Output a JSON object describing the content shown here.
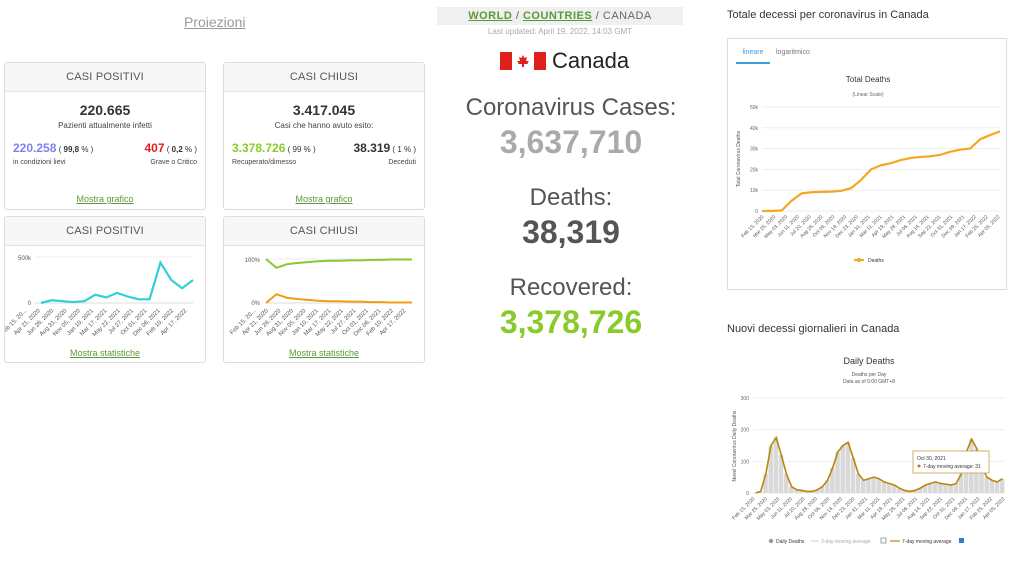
{
  "proiezioni": "Proiezioni",
  "active": {
    "title": "CASI POSITIVI",
    "count": "220.665",
    "subtitle": "Pazienti attualmente infetti",
    "mild_value": "220.258",
    "mild_pct": "99,8",
    "mild_label": "in condizioni lievi",
    "critical_value": "407",
    "critical_pct": "0,2",
    "critical_label": "Grave o Critico",
    "link": "Mostra grafico"
  },
  "closed": {
    "title": "CASI CHIUSI",
    "count": "3.417.045",
    "subtitle": "Casi che hanno avuto esito:",
    "recovered_value": "3.378.726",
    "recovered_pct": "99 %",
    "recovered_label": "Recuperato/dimesso",
    "deaths_value": "38.319",
    "deaths_pct": "1 %",
    "deaths_label": "Deceduti",
    "link": "Mostra grafico"
  },
  "active_chart": {
    "title": "CASI POSITIVI",
    "y_ticks": [
      "500k",
      "0"
    ],
    "x_ticks": [
      "Feb 15, 20...",
      "Apr 21, 2020",
      "Jun 26, 2020",
      "Aug 31, 2020",
      "Nov 05, 2020",
      "Jan 10, 2021",
      "Mar 17, 2021",
      "May 22, 2021",
      "Jul 27, 2021",
      "Oct 01, 2021",
      "Dec 06, 2021",
      "Feb 10, 2022",
      "Apr 17, 2022"
    ],
    "link": "Mostra statistiche",
    "color": "#2fd0d8"
  },
  "closed_chart": {
    "title": "CASI CHIUSI",
    "y_ticks": [
      "100%",
      "0%"
    ],
    "x_ticks": [
      "Feb 15, 20...",
      "Apr 21, 2020",
      "Jun 26, 2020",
      "Aug 31, 2020",
      "Nov 05, 2020",
      "Jan 10, 2021",
      "Mar 17, 2021",
      "May 22, 2021",
      "Jul 27, 2021",
      "Oct 01, 2021",
      "Dec 06, 2021",
      "Feb 10, 2022",
      "Apr 17, 2022"
    ],
    "link": "Mostra statistiche",
    "recovered_color": "#8ac832",
    "deaths_color": "#f39c12"
  },
  "breadcrumb": {
    "world": "WORLD",
    "sep1": " / ",
    "countries": "COUNTRIES",
    "sep2": " / ",
    "current": "CANADA"
  },
  "last_updated": "Last updated: April 19, 2022, 14:03 GMT",
  "country": "Canada",
  "cases_label": "Coronavirus Cases:",
  "cases_value": "3,637,710",
  "deaths_label": "Deaths:",
  "deaths_value": "38,319",
  "recovered_label": "Recovered:",
  "recovered_value": "3,378,726",
  "colors": {
    "cases": "#aaaaaa",
    "deaths": "#555555",
    "recovered": "#8ACA2B"
  },
  "total_deaths": {
    "section_title": "Totale decessi per coronavirus in Canada",
    "tab_linear": "lineare",
    "tab_log": "logaritmico",
    "chart_title": "Total Deaths",
    "chart_subtitle": "(Linear Scale)",
    "ylabel": "Total Coronavirus Deaths",
    "y_ticks": [
      "50k",
      "40k",
      "30k",
      "20k",
      "10k",
      "0"
    ],
    "legend": "Deaths",
    "color": "#f5a623"
  },
  "daily_deaths": {
    "section_title": "Nuovi decessi giornalieri in Canada",
    "chart_title": "Daily Deaths",
    "subtitle1": "Deaths per Day",
    "subtitle2": "Data as of 0:00 GMT+8",
    "ylabel": "Novel Coronavirus Daily Deaths",
    "y_ticks": [
      "300",
      "200",
      "100",
      "0"
    ],
    "tooltip_date": "Oct 30, 2021",
    "tooltip_text": "7-day moving average: 31",
    "legend_daily": "Daily Deaths",
    "legend_3day": "3-day moving average",
    "legend_7day": "7-day moving average",
    "color": "#b8860b"
  },
  "date_ticks": [
    "Feb 15, 2020",
    "Mar 25, 2020",
    "May 03, 2020",
    "Jun 11, 2020",
    "Jul 20, 2020",
    "Aug 28, 2020",
    "Oct 06, 2020",
    "Nov 14, 2020",
    "Dec 23, 2020",
    "Jan 31, 2021",
    "Mar 11, 2021",
    "Apr 19, 2021",
    "May 28, 2021",
    "Jul 06, 2021",
    "Aug 14, 2021",
    "Sep 22, 2021",
    "Oct 31, 2021",
    "Dec 09, 2021",
    "Jan 17, 2022",
    "Feb 25, 2022",
    "Apr 05, 2022"
  ],
  "chart_data": [
    {
      "type": "area",
      "title": "CASI POSITIVI",
      "series": [
        {
          "name": "Active cases",
          "values": [
            0,
            30000,
            20000,
            10000,
            20000,
            90000,
            60000,
            110000,
            70000,
            40000,
            40000,
            440000,
            250000,
            160000,
            250000
          ]
        }
      ],
      "ylim": [
        0,
        500000
      ]
    },
    {
      "type": "line",
      "title": "CASI CHIUSI",
      "series": [
        {
          "name": "Recovered",
          "values": [
            100,
            80,
            88,
            91,
            93,
            95,
            96,
            96,
            97,
            97,
            98,
            98,
            99,
            99,
            99
          ]
        },
        {
          "name": "Deaths",
          "values": [
            0,
            20,
            12,
            9,
            7,
            5,
            4,
            4,
            3,
            3,
            2,
            2,
            1,
            1,
            1
          ]
        }
      ],
      "ylim": [
        0,
        100
      ]
    },
    {
      "type": "line",
      "title": "Total Deaths",
      "subtitle": "(Linear Scale)",
      "ylabel": "Total Coronavirus Deaths",
      "series": [
        {
          "name": "Deaths",
          "values": [
            0,
            0,
            300,
            5000,
            8500,
            9000,
            9200,
            9300,
            9700,
            11000,
            15000,
            20000,
            22000,
            23000,
            24500,
            25500,
            26000,
            26300,
            27000,
            28500,
            29500,
            30000,
            34500,
            36500,
            38319
          ]
        }
      ],
      "ylim": [
        0,
        50000
      ]
    },
    {
      "type": "bar",
      "title": "Daily Deaths",
      "ylabel": "Novel Coronavirus Daily Deaths",
      "series": [
        {
          "name": "Daily Deaths",
          "values": [
            0,
            5,
            60,
            150,
            175,
            120,
            60,
            20,
            10,
            8,
            5,
            5,
            10,
            20,
            40,
            80,
            130,
            150,
            160,
            110,
            60,
            40,
            45,
            50,
            45,
            35,
            30,
            25,
            15,
            8,
            5,
            8,
            15,
            25,
            30,
            35,
            30,
            28,
            25,
            30,
            60,
            130,
            170,
            140,
            80,
            50,
            40,
            35,
            45
          ]
        },
        {
          "name": "7-day moving average",
          "values": [
            0,
            5,
            60,
            150,
            175,
            120,
            60,
            20,
            10,
            8,
            5,
            5,
            10,
            20,
            40,
            80,
            130,
            150,
            160,
            110,
            60,
            40,
            45,
            50,
            45,
            35,
            30,
            25,
            15,
            8,
            5,
            8,
            15,
            25,
            30,
            35,
            30,
            28,
            25,
            30,
            60,
            130,
            170,
            140,
            80,
            50,
            40,
            35,
            45
          ]
        }
      ],
      "ylim": [
        0,
        300
      ]
    }
  ]
}
